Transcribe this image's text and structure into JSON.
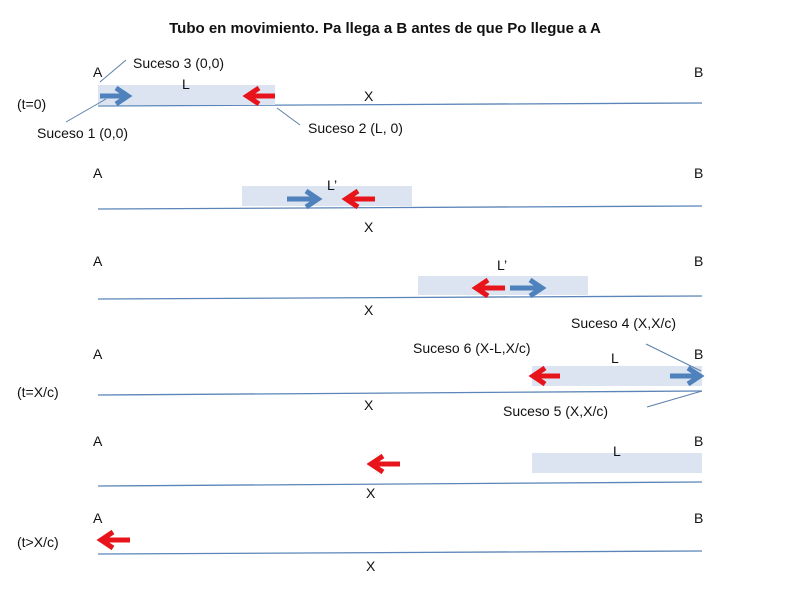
{
  "title": "Tubo en movimiento.   Pa llega a B antes de que Po llegue a A",
  "labels": {
    "a": "A",
    "b": "B",
    "x": "X",
    "l": "L",
    "l_prime": "L’"
  },
  "times": {
    "t0": "(t=0)",
    "t_xc": "(t=X/c)",
    "t_after": "(t>X/c)"
  },
  "events": {
    "e1": "Suceso 1  (0,0)",
    "e2": "Suceso 2  (L,  0)",
    "e3": "Suceso 3  (0,0)",
    "e4": "Suceso 4  (X,X/c)",
    "e5": "Suceso 5  (X,X/c)",
    "e6": "Suceso 6  (X-L,X/c)"
  },
  "colors": {
    "blue_arrow": "#4f81bd",
    "red_arrow": "#e8141b",
    "tube": "#dbe4f0",
    "axis": "#5b85b8"
  }
}
